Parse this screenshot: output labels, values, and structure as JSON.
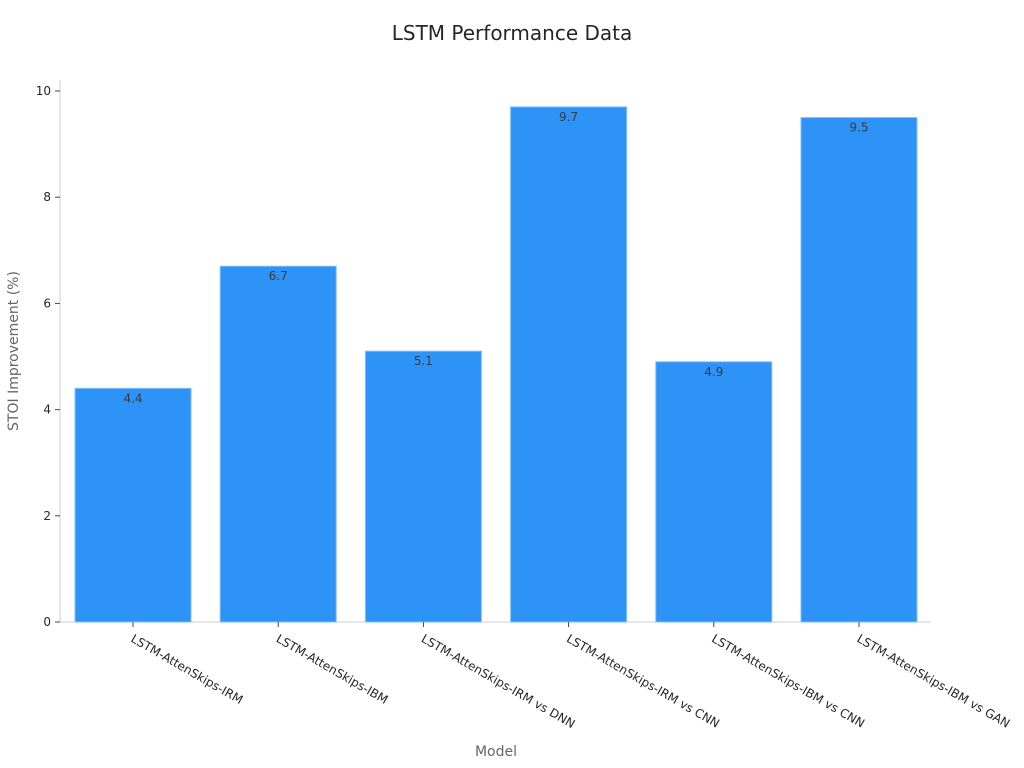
{
  "chart_data": {
    "type": "bar",
    "title": "LSTM Performance Data",
    "xlabel": "Model",
    "ylabel": "STOI Improvement (%)",
    "categories": [
      "LSTM-AttenSkips-IRM",
      "LSTM-AttenSkips-IBM",
      "LSTM-AttenSkips-IRM vs DNN",
      "LSTM-AttenSkips-IRM vs CNN",
      "LSTM-AttenSkips-IBM vs CNN",
      "LSTM-AttenSkips-IBM vs GAN"
    ],
    "values": [
      4.4,
      6.7,
      5.1,
      9.7,
      4.9,
      9.5
    ],
    "data_labels": [
      "4.4",
      "6.7",
      "5.1",
      "9.7",
      "4.9",
      "9.5"
    ],
    "ylim": [
      0,
      10
    ],
    "yticks": [
      0,
      2,
      4,
      6,
      8,
      10
    ],
    "ytick_labels": [
      "0",
      "2",
      "4",
      "6",
      "8",
      "10"
    ],
    "grid": false,
    "colors": {
      "bar": "#2e93f7",
      "bar_edge": "#7fbff9",
      "axis": "#cfcfcf"
    }
  }
}
